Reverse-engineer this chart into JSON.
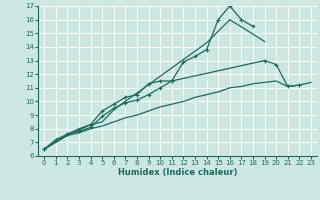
{
  "xlabel": "Humidex (Indice chaleur)",
  "background_color": "#cde8e2",
  "line_color": "#1a6b5e",
  "xlim": [
    -0.5,
    23.5
  ],
  "ylim": [
    6,
    17
  ],
  "xticks": [
    0,
    1,
    2,
    3,
    4,
    5,
    6,
    7,
    8,
    9,
    10,
    11,
    12,
    13,
    14,
    15,
    16,
    17,
    18,
    19,
    20,
    21,
    22,
    23
  ],
  "yticks": [
    6,
    7,
    8,
    9,
    10,
    11,
    12,
    13,
    14,
    15,
    16,
    17
  ],
  "series": [
    {
      "x": [
        0,
        1,
        2,
        3,
        4,
        5,
        6,
        7,
        8,
        9,
        10,
        11,
        12,
        13,
        14,
        15,
        16,
        17,
        18
      ],
      "y": [
        6.5,
        7.2,
        7.6,
        7.9,
        8.3,
        9.3,
        9.8,
        10.3,
        10.5,
        11.3,
        11.5,
        11.5,
        12.9,
        13.3,
        13.8,
        16.0,
        17.0,
        16.0,
        15.5
      ],
      "marker": true,
      "markersize": 2.5
    },
    {
      "x": [
        0,
        2,
        3,
        4,
        5,
        6,
        14,
        16,
        19
      ],
      "y": [
        6.5,
        7.6,
        8.0,
        8.3,
        8.5,
        9.4,
        14.3,
        16.0,
        14.4
      ],
      "marker": false,
      "markersize": 0
    },
    {
      "x": [
        0,
        2,
        3,
        4,
        5,
        6,
        7,
        8,
        9,
        10,
        11,
        19,
        20,
        21,
        22
      ],
      "y": [
        6.5,
        7.6,
        7.8,
        8.1,
        8.9,
        9.5,
        9.9,
        10.1,
        10.5,
        11.0,
        11.5,
        13.0,
        12.7,
        11.1,
        11.2
      ],
      "marker": true,
      "markersize": 2.5
    },
    {
      "x": [
        0,
        2,
        3,
        4,
        5,
        6,
        7,
        8,
        9,
        10,
        11,
        12,
        13,
        14,
        15,
        16,
        17,
        18,
        19,
        20,
        21,
        22,
        23
      ],
      "y": [
        6.5,
        7.5,
        7.7,
        8.0,
        8.2,
        8.5,
        8.8,
        9.0,
        9.3,
        9.6,
        9.8,
        10.0,
        10.3,
        10.5,
        10.7,
        11.0,
        11.1,
        11.3,
        11.4,
        11.5,
        11.1,
        11.2,
        11.4
      ],
      "marker": false,
      "markersize": 0
    }
  ]
}
